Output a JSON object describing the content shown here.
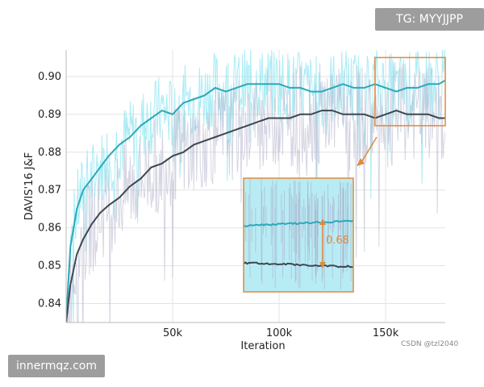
{
  "watermarks": {
    "top_right": "TG: MYYJJPP",
    "bottom_left": "innermqz.com",
    "credit": "CSDN @tzl2040"
  },
  "chart_data": {
    "type": "line",
    "title": "",
    "xlabel": "Iteration",
    "ylabel": "DAVIS'16 J&F",
    "xlim": [
      0,
      178000
    ],
    "ylim": [
      0.835,
      0.907
    ],
    "x_ticks": [
      50000,
      100000,
      150000
    ],
    "x_tick_labels": [
      "50k",
      "100k",
      "150k"
    ],
    "y_ticks": [
      0.84,
      0.85,
      0.86,
      0.87,
      0.88,
      0.89,
      0.9
    ],
    "y_tick_labels": [
      "0.84",
      "0.85",
      "0.86",
      "0.87",
      "0.88",
      "0.89",
      "0.90"
    ],
    "grid": true,
    "series": [
      {
        "color": "#2ba9b8",
        "raw_color": "#8fe6f0",
        "x": [
          0,
          2000,
          5000,
          8000,
          12000,
          16000,
          20000,
          25000,
          30000,
          35000,
          40000,
          45000,
          50000,
          55000,
          60000,
          65000,
          70000,
          75000,
          80000,
          85000,
          90000,
          95000,
          100000,
          105000,
          110000,
          115000,
          120000,
          125000,
          130000,
          135000,
          140000,
          145000,
          150000,
          155000,
          160000,
          165000,
          170000,
          175000,
          178000
        ],
        "values": [
          0.836,
          0.855,
          0.865,
          0.87,
          0.873,
          0.876,
          0.879,
          0.882,
          0.884,
          0.887,
          0.889,
          0.891,
          0.89,
          0.893,
          0.894,
          0.895,
          0.897,
          0.896,
          0.897,
          0.898,
          0.898,
          0.898,
          0.898,
          0.897,
          0.897,
          0.896,
          0.896,
          0.897,
          0.898,
          0.897,
          0.897,
          0.898,
          0.897,
          0.896,
          0.897,
          0.897,
          0.898,
          0.898,
          0.899
        ]
      },
      {
        "color": "#3d4751",
        "raw_color": "#b9b9d0",
        "x": [
          0,
          2000,
          5000,
          8000,
          12000,
          16000,
          20000,
          25000,
          30000,
          35000,
          40000,
          45000,
          50000,
          55000,
          60000,
          65000,
          70000,
          75000,
          80000,
          85000,
          90000,
          95000,
          100000,
          105000,
          110000,
          115000,
          120000,
          125000,
          130000,
          135000,
          140000,
          145000,
          150000,
          155000,
          160000,
          165000,
          170000,
          175000,
          178000
        ],
        "values": [
          0.835,
          0.845,
          0.853,
          0.857,
          0.861,
          0.864,
          0.866,
          0.868,
          0.871,
          0.873,
          0.876,
          0.877,
          0.879,
          0.88,
          0.882,
          0.883,
          0.884,
          0.885,
          0.886,
          0.887,
          0.888,
          0.889,
          0.889,
          0.889,
          0.89,
          0.89,
          0.891,
          0.891,
          0.89,
          0.89,
          0.89,
          0.889,
          0.89,
          0.891,
          0.89,
          0.89,
          0.89,
          0.889,
          0.889
        ]
      }
    ],
    "annotation": {
      "text": "0.68",
      "color": "#e08a3c",
      "zoom_region": {
        "x": [
          145000,
          178000
        ],
        "y": [
          0.887,
          0.905
        ]
      }
    }
  }
}
